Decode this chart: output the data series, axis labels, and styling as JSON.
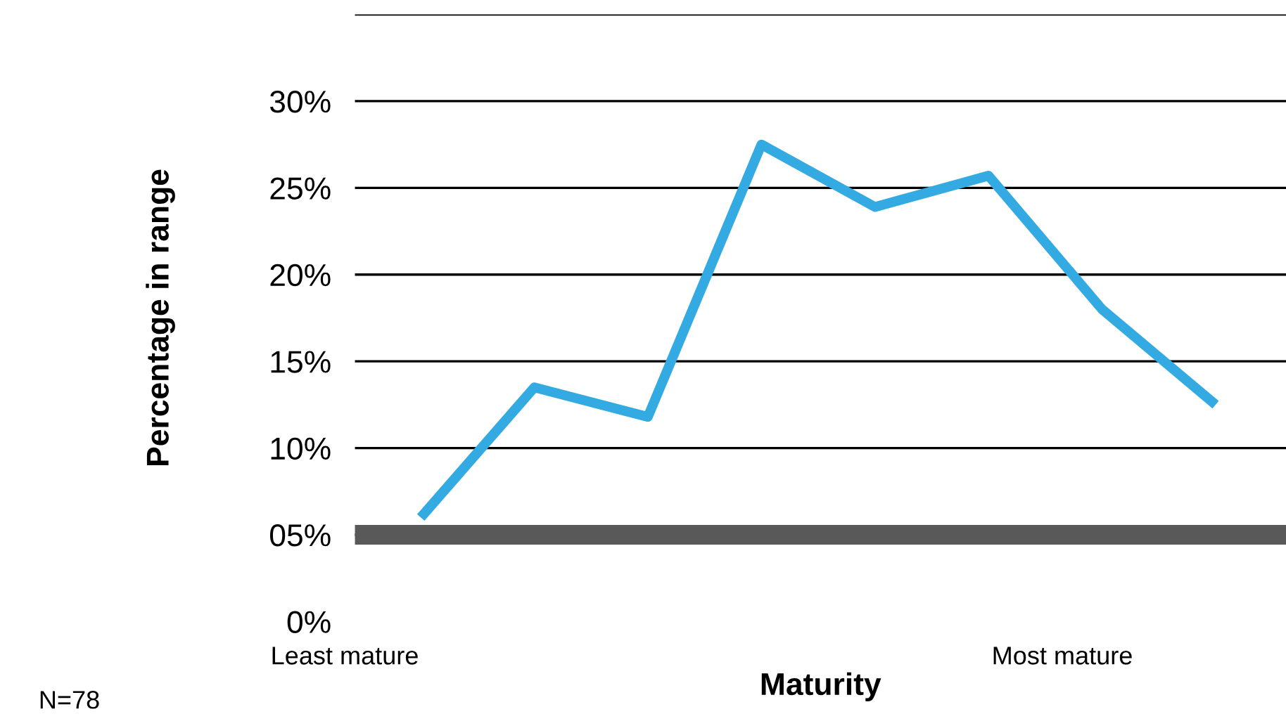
{
  "chart_data": {
    "type": "line",
    "xlabel": "Maturity",
    "ylabel": "Percentage in range",
    "categories": [
      null,
      null,
      null,
      null,
      null,
      null,
      null,
      null
    ],
    "series": [
      {
        "color": "#33aae1",
        "values": [
          6.0,
          13.5,
          11.8,
          27.5,
          23.9,
          25.7,
          18.0,
          12.5
        ]
      }
    ],
    "ylim": [
      0,
      35
    ],
    "yticks": [
      {
        "value": 0,
        "label": "0%"
      },
      {
        "value": 5,
        "label": "05%"
      },
      {
        "value": 10,
        "label": "10%"
      },
      {
        "value": 15,
        "label": "15%"
      },
      {
        "value": 20,
        "label": "20%"
      },
      {
        "value": 25,
        "label": "25%"
      },
      {
        "value": 30,
        "label": "30%"
      },
      {
        "value": 35,
        "label": null
      }
    ],
    "ref_lines": [
      {
        "axis": "y",
        "value": 5,
        "color": "#595959"
      }
    ],
    "grid": "y",
    "marker": "none",
    "line_style": "solid",
    "annotations": [
      "Least mature",
      "Most mature",
      "N=78"
    ]
  }
}
